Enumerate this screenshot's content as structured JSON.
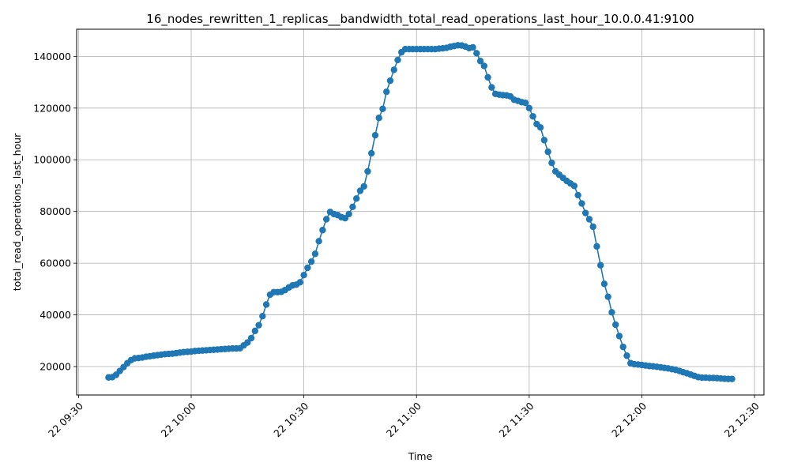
{
  "chart_data": {
    "type": "line",
    "title": "16_nodes_rewritten_1_replicas__bandwidth_total_read_operations_last_hour_10.0.0.41:9100",
    "xlabel": "Time",
    "ylabel": "total_read_operations_last_hour",
    "x_tick_labels": [
      "22 09:30",
      "22 10:00",
      "22 10:30",
      "22 11:00",
      "22 11:30",
      "22 12:00",
      "22 12:30"
    ],
    "x_tick_minutes": [
      570,
      600,
      630,
      660,
      690,
      720,
      750
    ],
    "x_unit": "minutes since 00:00 on day 22",
    "x_range": [
      569.5,
      752.5
    ],
    "y_ticks": [
      20000,
      40000,
      60000,
      80000,
      100000,
      120000,
      140000
    ],
    "y_tick_labels": [
      "20000",
      "40000",
      "60000",
      "80000",
      "100000",
      "120000",
      "140000"
    ],
    "ylim": [
      9000,
      150500
    ],
    "grid": true,
    "marker": "circle",
    "color": "#1f77b4",
    "series": [
      {
        "name": "",
        "x": [
          578,
          579,
          580,
          581,
          582,
          583,
          584,
          585,
          586,
          587,
          588,
          589,
          590,
          591,
          592,
          593,
          594,
          595,
          596,
          597,
          598,
          599,
          600,
          601,
          602,
          603,
          604,
          605,
          606,
          607,
          608,
          609,
          610,
          611,
          612,
          613,
          614,
          615,
          616,
          617,
          618,
          619,
          620,
          621,
          622,
          623,
          624,
          625,
          626,
          627,
          628,
          629,
          630,
          631,
          632,
          633,
          634,
          635,
          636,
          637,
          638,
          639,
          640,
          641,
          642,
          643,
          644,
          645,
          646,
          647,
          648,
          649,
          650,
          651,
          652,
          653,
          654,
          655,
          656,
          657,
          658,
          659,
          660,
          661,
          662,
          663,
          664,
          665,
          666,
          667,
          668,
          669,
          670,
          671,
          672,
          673,
          674,
          675,
          676,
          677,
          678,
          679,
          680,
          681,
          682,
          683,
          684,
          685,
          686,
          687,
          688,
          689,
          690,
          691,
          692,
          693,
          694,
          695,
          696,
          697,
          698,
          699,
          700,
          701,
          702,
          703,
          704,
          705,
          706,
          707,
          708,
          709,
          710,
          711,
          712,
          713,
          714,
          715,
          716,
          717,
          718,
          719,
          720,
          721,
          722,
          723,
          724,
          725,
          726,
          727,
          728,
          729,
          730,
          731,
          732,
          733,
          734,
          735,
          736,
          737,
          738,
          739,
          740,
          741,
          742,
          743,
          744
        ],
        "y": [
          15800,
          15900,
          16800,
          18300,
          19800,
          21300,
          22500,
          23200,
          23300,
          23500,
          23800,
          24000,
          24200,
          24400,
          24600,
          24800,
          24900,
          25000,
          25200,
          25400,
          25600,
          25700,
          25800,
          26000,
          26100,
          26200,
          26300,
          26400,
          26500,
          26600,
          26700,
          26800,
          26900,
          27000,
          27000,
          27100,
          28200,
          29300,
          31000,
          33800,
          36000,
          39500,
          44000,
          47800,
          48800,
          48800,
          48900,
          49600,
          50600,
          51400,
          51700,
          52600,
          55400,
          58200,
          60600,
          63600,
          68500,
          72800,
          77000,
          79800,
          79000,
          78600,
          77800,
          77400,
          79000,
          81800,
          85000,
          88000,
          89700,
          95500,
          102500,
          109500,
          116200,
          119700,
          126300,
          130600,
          134800,
          138600,
          141600,
          142800,
          142800,
          142800,
          142800,
          142800,
          142800,
          142800,
          142800,
          142800,
          143000,
          143100,
          143300,
          143700,
          144000,
          144300,
          144200,
          143800,
          143200,
          143500,
          141200,
          138200,
          136300,
          131900,
          128000,
          125500,
          125200,
          125000,
          124900,
          124500,
          123200,
          122800,
          122300,
          122000,
          120000,
          116800,
          113800,
          112500,
          107600,
          103100,
          98800,
          95500,
          94200,
          93000,
          91800,
          90800,
          89900,
          86300,
          83100,
          79400,
          77000,
          74100,
          66500,
          59200,
          52000,
          47000,
          41000,
          36200,
          31800,
          27600,
          24200,
          21300,
          20900,
          20800,
          20600,
          20400,
          20200,
          20100,
          19900,
          19700,
          19500,
          19300,
          19000,
          18700,
          18300,
          17800,
          17400,
          16900,
          16400,
          15900,
          15700,
          15700,
          15600,
          15600,
          15500,
          15400,
          15300,
          15200,
          15200
        ]
      }
    ]
  }
}
